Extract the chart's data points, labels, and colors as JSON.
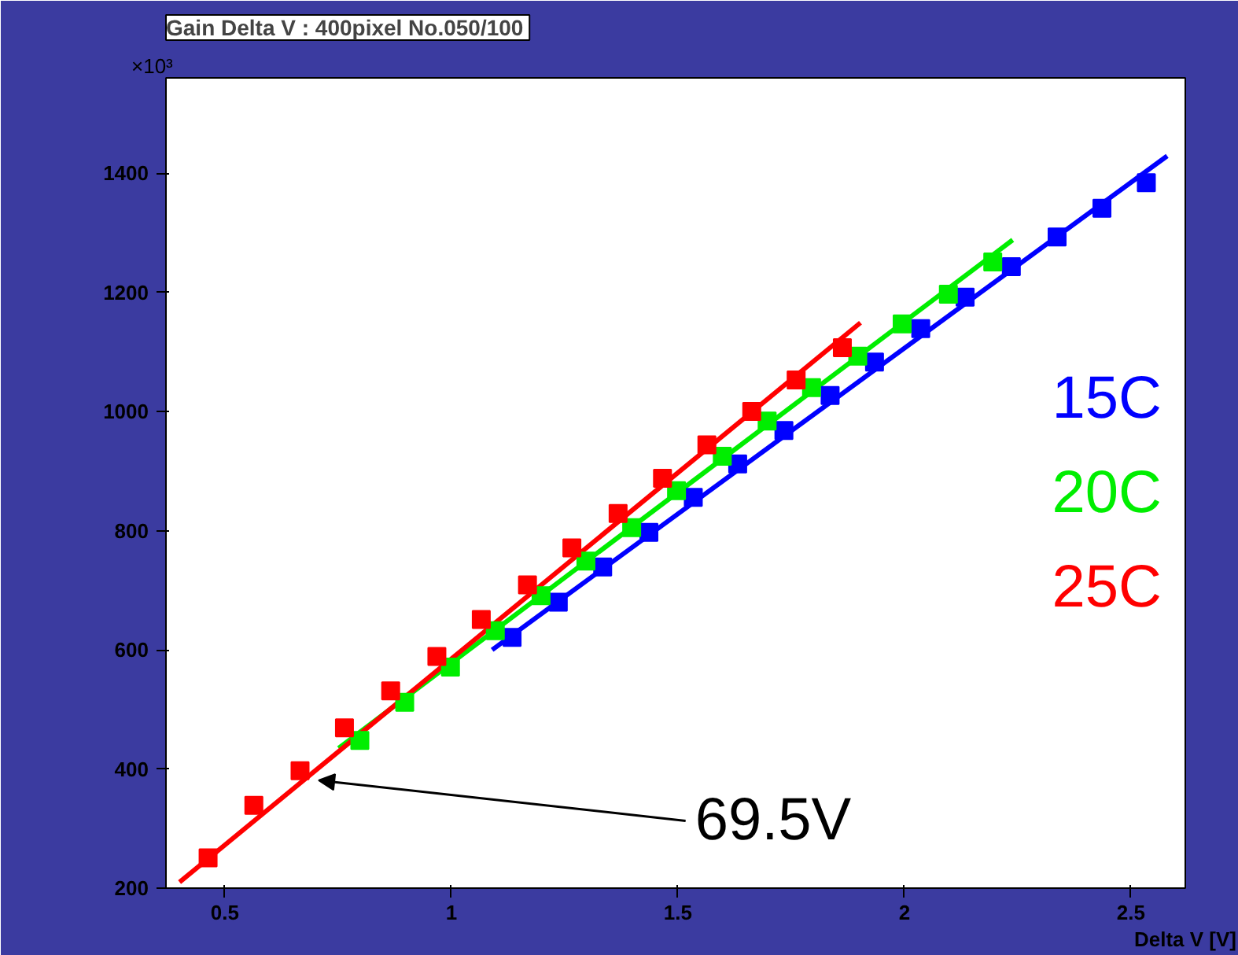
{
  "chart_data": {
    "type": "scatter",
    "title": "Gain  Delta V : 400pixel No.050/100",
    "xlabel": "Delta V [V]",
    "ylabel": "×10³",
    "xlim": [
      0.37,
      2.62
    ],
    "ylim": [
      200,
      1560
    ],
    "xticks": [
      0.5,
      1,
      1.5,
      2,
      2.5
    ],
    "yticks": [
      200,
      400,
      600,
      800,
      1000,
      1200,
      1400
    ],
    "marker": "square",
    "grid": false,
    "series": [
      {
        "name": "15C",
        "color": "#0000ff",
        "x": [
          1.134,
          1.236,
          1.334,
          1.436,
          1.534,
          1.632,
          1.734,
          1.836,
          1.934,
          2.036,
          2.134,
          2.236,
          2.337,
          2.436,
          2.534
        ],
        "values": [
          621,
          680,
          739,
          797,
          856,
          912,
          968,
          1027,
          1083,
          1139,
          1192,
          1243,
          1293,
          1341,
          1384
        ]
      },
      {
        "name": "20C",
        "color": "#00ee00",
        "x": [
          0.798,
          0.897,
          0.998,
          1.097,
          1.198,
          1.297,
          1.398,
          1.497,
          1.598,
          1.697,
          1.795,
          1.897,
          1.995,
          2.097,
          2.195
        ],
        "values": [
          448,
          512,
          571,
          632,
          691,
          749,
          805,
          867,
          925,
          984,
          1040,
          1093,
          1147,
          1197,
          1251
        ]
      },
      {
        "name": "25C",
        "color": "#ff0000",
        "x": [
          0.463,
          0.564,
          0.666,
          0.764,
          0.866,
          0.968,
          1.066,
          1.168,
          1.266,
          1.368,
          1.466,
          1.564,
          1.663,
          1.761,
          1.863
        ],
        "values": [
          251,
          339,
          397,
          469,
          531,
          589,
          651,
          709,
          771,
          829,
          888,
          944,
          1000,
          1053,
          1107
        ]
      },
      {
        "type": "line",
        "marker": "none",
        "color": "#0000ff",
        "x": [
          1.09,
          2.58
        ],
        "values": [
          600,
          1429
        ]
      },
      {
        "type": "line",
        "marker": "none",
        "color": "#00ee00",
        "x": [
          0.751,
          2.239
        ],
        "values": [
          435,
          1288
        ]
      },
      {
        "type": "line",
        "marker": "none",
        "color": "#ff0000",
        "x": [
          0.4,
          1.903
        ],
        "values": [
          210,
          1149
        ]
      }
    ],
    "annotations": [
      {
        "text": "69.5V",
        "x": 0.707,
        "y": 381
      }
    ]
  }
}
